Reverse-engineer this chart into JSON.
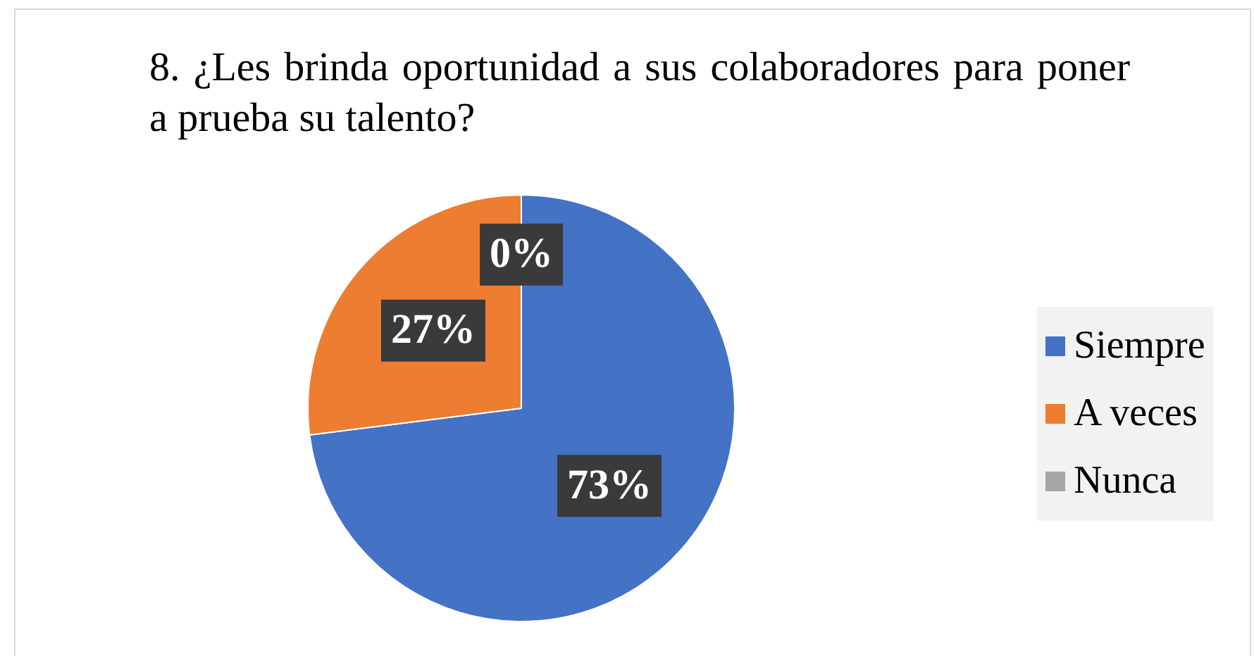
{
  "chart_data": {
    "type": "pie",
    "title": "8. ¿Les brinda oportunidad a sus colaboradores para poner a prueba su talento?",
    "categories": [
      "Siempre",
      "A veces",
      "Nunca"
    ],
    "values": [
      73,
      27,
      0
    ],
    "colors": [
      "#4472c4",
      "#ed7d31",
      "#a5a5a5"
    ],
    "value_labels": [
      "73%",
      "27%",
      "0%"
    ],
    "legend": "right"
  }
}
